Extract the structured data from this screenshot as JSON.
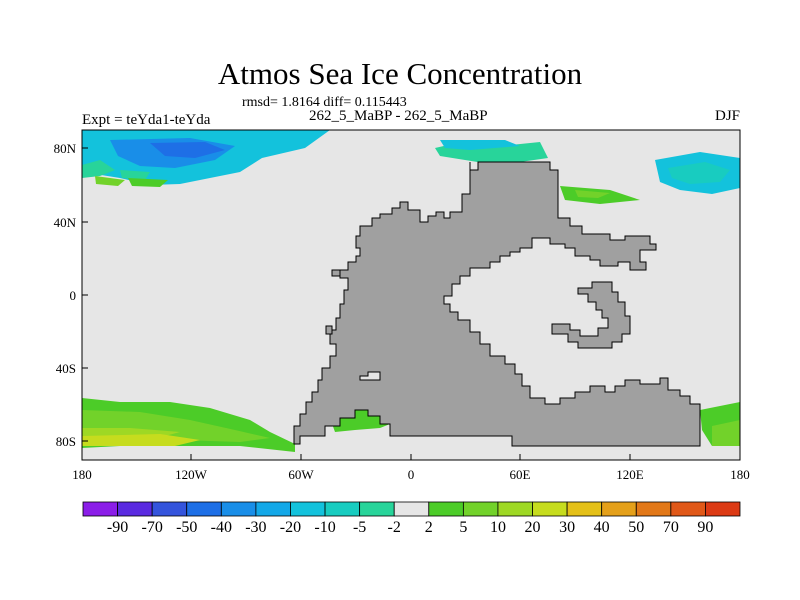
{
  "title": "Atmos Sea Ice Concentration",
  "stats_text": "rmsd= 1.8164 diff= 0.115443",
  "case_text": "262_5_MaBP - 262_5_MaBP",
  "expt_text": "Expt = teYda1-teYda",
  "season": "DJF",
  "lat_labels": [
    "80N",
    "40N",
    "0",
    "40S",
    "80S"
  ],
  "lon_labels": [
    "180",
    "120W",
    "60W",
    "0",
    "60E",
    "120E",
    "180"
  ],
  "colorbar": {
    "labels": [
      "-90",
      "-70",
      "-50",
      "-40",
      "-30",
      "-20",
      "-10",
      "-5",
      "-2",
      "2",
      "5",
      "10",
      "20",
      "30",
      "40",
      "50",
      "70",
      "90"
    ],
    "colors": [
      "#8b1ee8",
      "#5a2ae0",
      "#3454dc",
      "#1e6fe6",
      "#198ee8",
      "#13a8e8",
      "#13c2dc",
      "#18ccc0",
      "#28d49a",
      "#e6e6e6",
      "#4ccc28",
      "#72d22a",
      "#9ed824",
      "#c6dc1e",
      "#e4c018",
      "#e4a01a",
      "#e27818",
      "#e05818",
      "#dc3a14"
    ]
  },
  "legend_colors": {
    "land": "#a0a0a0",
    "no_change": "#e6e6e6"
  }
}
